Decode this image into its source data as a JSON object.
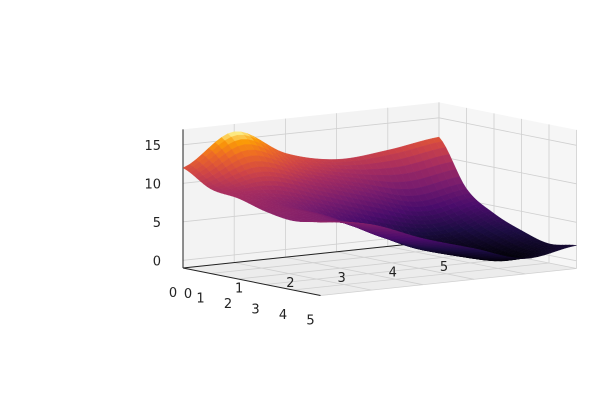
{
  "chart_data": {
    "type": "surface3d",
    "title": "",
    "xlabel": "",
    "ylabel": "",
    "zlabel": "",
    "colormap": "inferno",
    "grid": true,
    "xlim": [
      0,
      5
    ],
    "ylim": [
      0,
      5
    ],
    "zlim": [
      -1,
      17
    ],
    "x_ticks": [
      "0",
      "1",
      "2",
      "3",
      "4",
      "5"
    ],
    "y_ticks": [
      "0",
      "1",
      "2",
      "3",
      "4",
      "5"
    ],
    "z_ticks": [
      "0",
      "5",
      "10",
      "15"
    ],
    "x": [
      0,
      1,
      2,
      3,
      4,
      5
    ],
    "y": [
      0,
      1,
      2,
      3,
      4,
      5
    ],
    "z": [
      [
        12.0,
        16.0,
        12.5,
        11.0,
        11.5,
        12.5
      ],
      [
        10.0,
        11.5,
        9.5,
        7.5,
        5.5,
        6.5
      ],
      [
        9.5,
        8.0,
        5.5,
        3.0,
        2.0,
        4.0
      ],
      [
        8.5,
        7.5,
        4.5,
        1.5,
        0.5,
        2.5
      ],
      [
        8.0,
        7.0,
        4.0,
        2.0,
        0.0,
        1.5
      ],
      [
        8.5,
        7.5,
        5.0,
        3.0,
        1.0,
        2.0
      ]
    ]
  }
}
